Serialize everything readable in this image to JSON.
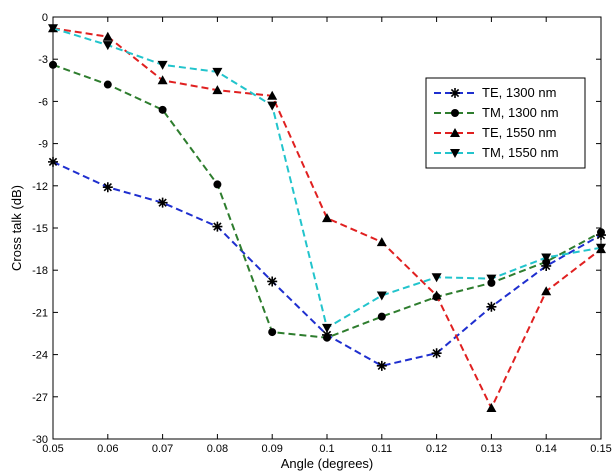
{
  "chart_data": {
    "type": "line",
    "title": "",
    "xlabel": "Angle (degrees)",
    "ylabel": "Cross talk (dB)",
    "xlim": [
      0.05,
      0.15
    ],
    "ylim": [
      -30,
      0
    ],
    "x_ticks": [
      "0.05",
      "0.06",
      "0.07",
      "0.08",
      "0.09",
      "0.1",
      "0.11",
      "0.12",
      "0.13",
      "0.14",
      "0.15"
    ],
    "y_ticks": [
      "0",
      "-3",
      "-6",
      "-9",
      "-12",
      "-15",
      "-18",
      "-21",
      "-24",
      "-27",
      "-30"
    ],
    "grid": false,
    "legend_position": "top-right",
    "x": [
      0.05,
      0.06,
      0.07,
      0.08,
      0.09,
      0.1,
      0.11,
      0.12,
      0.13,
      0.14,
      0.15
    ],
    "series": [
      {
        "name": "TE, 1300 nm",
        "color": "#1f2fcf",
        "marker": "asterisk",
        "values": [
          -10.3,
          -12.1,
          -13.2,
          -14.9,
          -18.8,
          -22.6,
          -24.8,
          -23.9,
          -20.6,
          -17.7,
          -15.5
        ]
      },
      {
        "name": "TM, 1300 nm",
        "color": "#2e7d2e",
        "marker": "circle",
        "values": [
          -3.4,
          -4.8,
          -6.6,
          -11.9,
          -22.4,
          -22.8,
          -21.3,
          -19.9,
          -18.9,
          -17.4,
          -15.3
        ]
      },
      {
        "name": "TE, 1550 nm",
        "color": "#e02020",
        "marker": "triangle-up",
        "values": [
          -0.8,
          -1.4,
          -4.5,
          -5.2,
          -5.6,
          -14.3,
          -16.0,
          -19.8,
          -27.8,
          -19.5,
          -16.5
        ]
      },
      {
        "name": "TM, 1550 nm",
        "color": "#22c4cc",
        "marker": "triangle-down",
        "values": [
          -0.8,
          -2.0,
          -3.4,
          -3.9,
          -6.3,
          -22.1,
          -19.8,
          -18.5,
          -18.6,
          -17.1,
          -16.4
        ]
      }
    ]
  }
}
